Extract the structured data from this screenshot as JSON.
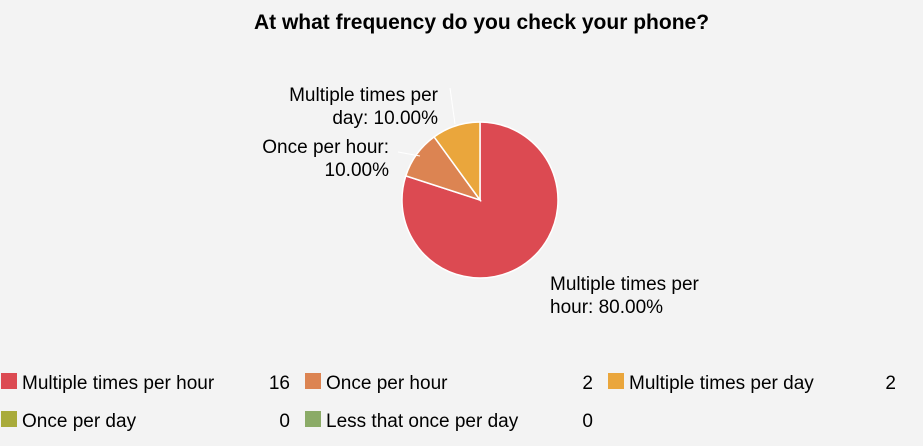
{
  "chart_data": {
    "type": "pie",
    "title": "At what frequency do you check your phone?",
    "slices": [
      {
        "name": "Multiple times per hour",
        "value": 16,
        "percent": 80.0,
        "color": "#dc4a52",
        "label_lines": [
          "Multiple times per",
          "hour: 80.00%"
        ]
      },
      {
        "name": "Once per hour",
        "value": 2,
        "percent": 10.0,
        "color": "#dc8452",
        "label_lines": [
          "Once per hour:",
          "10.00%"
        ]
      },
      {
        "name": "Multiple times per day",
        "value": 2,
        "percent": 10.0,
        "color": "#eaa63c",
        "label_lines": [
          "Multiple times per",
          "day: 10.00%"
        ]
      },
      {
        "name": "Once per day",
        "value": 0,
        "percent": 0.0,
        "color": "#a9ab3b",
        "label_lines": []
      },
      {
        "name": "Less that once per day",
        "value": 0,
        "percent": 0.0,
        "color": "#8bab67",
        "label_lines": []
      }
    ],
    "legend": {
      "placement": "bottom",
      "items": [
        {
          "label": "Multiple times per hour",
          "count": "16",
          "color": "#dc4a52"
        },
        {
          "label": "Once per hour",
          "count": "2",
          "color": "#dc8452"
        },
        {
          "label": "Multiple times per day",
          "count": "2",
          "color": "#eaa63c"
        },
        {
          "label": "Once per day",
          "count": "0",
          "color": "#a9ab3b"
        },
        {
          "label": "Less that once per day",
          "count": "0",
          "color": "#8bab67"
        }
      ]
    }
  }
}
